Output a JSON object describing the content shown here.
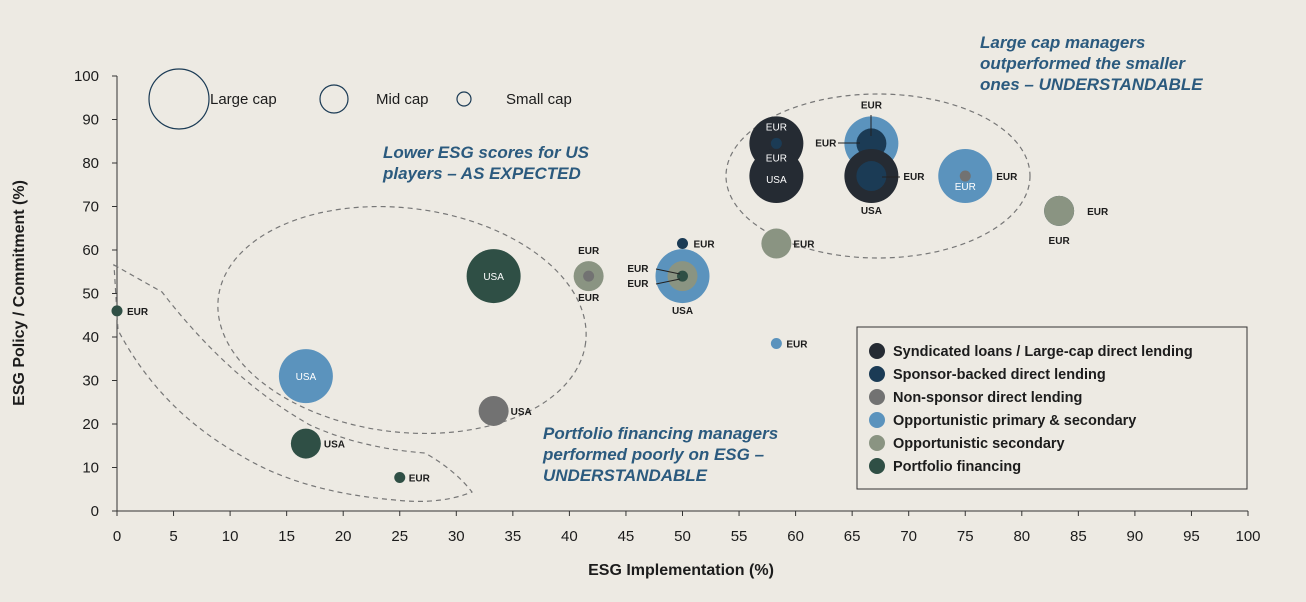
{
  "chart_data": {
    "type": "scatter",
    "xlabel": "ESG Implementation (%)",
    "ylabel": "ESG Policy / Commitment (%)",
    "xlim": [
      0,
      100
    ],
    "ylim": [
      0,
      100
    ],
    "xticks": [
      "0",
      "5",
      "10",
      "15",
      "20",
      "25",
      "30",
      "35",
      "40",
      "45",
      "50",
      "55",
      "60",
      "65",
      "70",
      "75",
      "80",
      "85",
      "90",
      "95",
      "100"
    ],
    "yticks": [
      "0",
      "10",
      "20",
      "30",
      "40",
      "50",
      "60",
      "70",
      "80",
      "90",
      "100"
    ],
    "size_legend": [
      {
        "label": "Large cap",
        "size": "large"
      },
      {
        "label": "Mid cap",
        "size": "mid"
      },
      {
        "label": "Small cap",
        "size": "small"
      }
    ],
    "legend": [
      {
        "name": "Syndicated loans / Large-cap direct lending",
        "color": "#252b33"
      },
      {
        "name": "Sponsor-backed direct lending",
        "color": "#1b3b55"
      },
      {
        "name": "Non-sponsor direct lending",
        "color": "#727272"
      },
      {
        "name": "Opportunistic primary & secondary",
        "color": "#5b93bd"
      },
      {
        "name": "Opportunistic secondary",
        "color": "#8a9482"
      },
      {
        "name": "Portfolio financing",
        "color": "#2f4f45"
      }
    ],
    "annotations": [
      {
        "text": [
          "Large cap managers",
          "outperformed the smaller",
          "ones – UNDERSTANDABLE"
        ]
      },
      {
        "text": [
          "Lower ESG scores for US",
          "players – AS EXPECTED"
        ]
      },
      {
        "text": [
          "Portfolio financing managers",
          "performed poorly on ESG –",
          "UNDERSTANDABLE"
        ]
      }
    ],
    "points": [
      {
        "x": 0,
        "y": 46,
        "size": "small",
        "category": 5,
        "label": "EUR"
      },
      {
        "x": 16.7,
        "y": 31,
        "size": "large",
        "category": 3,
        "label": "USA"
      },
      {
        "x": 16.7,
        "y": 15.5,
        "size": "mid",
        "category": 5,
        "label": "USA"
      },
      {
        "x": 25,
        "y": 7.7,
        "size": "small",
        "category": 5,
        "label": "EUR"
      },
      {
        "x": 33.3,
        "y": 54,
        "size": "large",
        "category": 5,
        "label": "USA"
      },
      {
        "x": 33.3,
        "y": 23,
        "size": "mid",
        "category": 2,
        "label": "USA"
      },
      {
        "x": 41.7,
        "y": 54,
        "size": "mid",
        "category": 4,
        "label": "EUR"
      },
      {
        "x": 41.7,
        "y": 54,
        "size": "small",
        "category": 2,
        "label": "EUR"
      },
      {
        "x": 50,
        "y": 54,
        "size": "large",
        "category": 3,
        "label": "USA"
      },
      {
        "x": 50,
        "y": 54,
        "size": "mid",
        "category": 4,
        "label": "EUR"
      },
      {
        "x": 50,
        "y": 54,
        "size": "small",
        "category": 5,
        "label": "EUR"
      },
      {
        "x": 50,
        "y": 61.5,
        "size": "small",
        "category": 1,
        "label": "EUR"
      },
      {
        "x": 58.3,
        "y": 61.5,
        "size": "mid",
        "category": 4,
        "label": "EUR"
      },
      {
        "x": 58.3,
        "y": 38.5,
        "size": "small",
        "category": 3,
        "label": "EUR"
      },
      {
        "x": 58.3,
        "y": 84.5,
        "size": "large",
        "category": 0,
        "label": "EUR"
      },
      {
        "x": 58.3,
        "y": 77,
        "size": "large",
        "category": 0,
        "label": "USA"
      },
      {
        "x": 58.3,
        "y": 84.5,
        "size": "small",
        "category": 1,
        "label": "EUR"
      },
      {
        "x": 66.7,
        "y": 84.5,
        "size": "large",
        "category": 3,
        "label": "EUR"
      },
      {
        "x": 66.7,
        "y": 84.5,
        "size": "mid",
        "category": 1,
        "label": "EUR"
      },
      {
        "x": 66.7,
        "y": 77,
        "size": "large",
        "category": 0,
        "label": "USA"
      },
      {
        "x": 66.7,
        "y": 77,
        "size": "mid",
        "category": 1,
        "label": "EUR"
      },
      {
        "x": 75,
        "y": 77,
        "size": "large",
        "category": 3,
        "label": "EUR"
      },
      {
        "x": 75,
        "y": 77,
        "size": "small",
        "category": 2,
        "label": "EUR"
      },
      {
        "x": 83.3,
        "y": 69,
        "size": "mid",
        "category": 1,
        "label": "EUR"
      },
      {
        "x": 83.3,
        "y": 69,
        "size": "mid",
        "category": 4,
        "label": "EUR"
      }
    ]
  }
}
